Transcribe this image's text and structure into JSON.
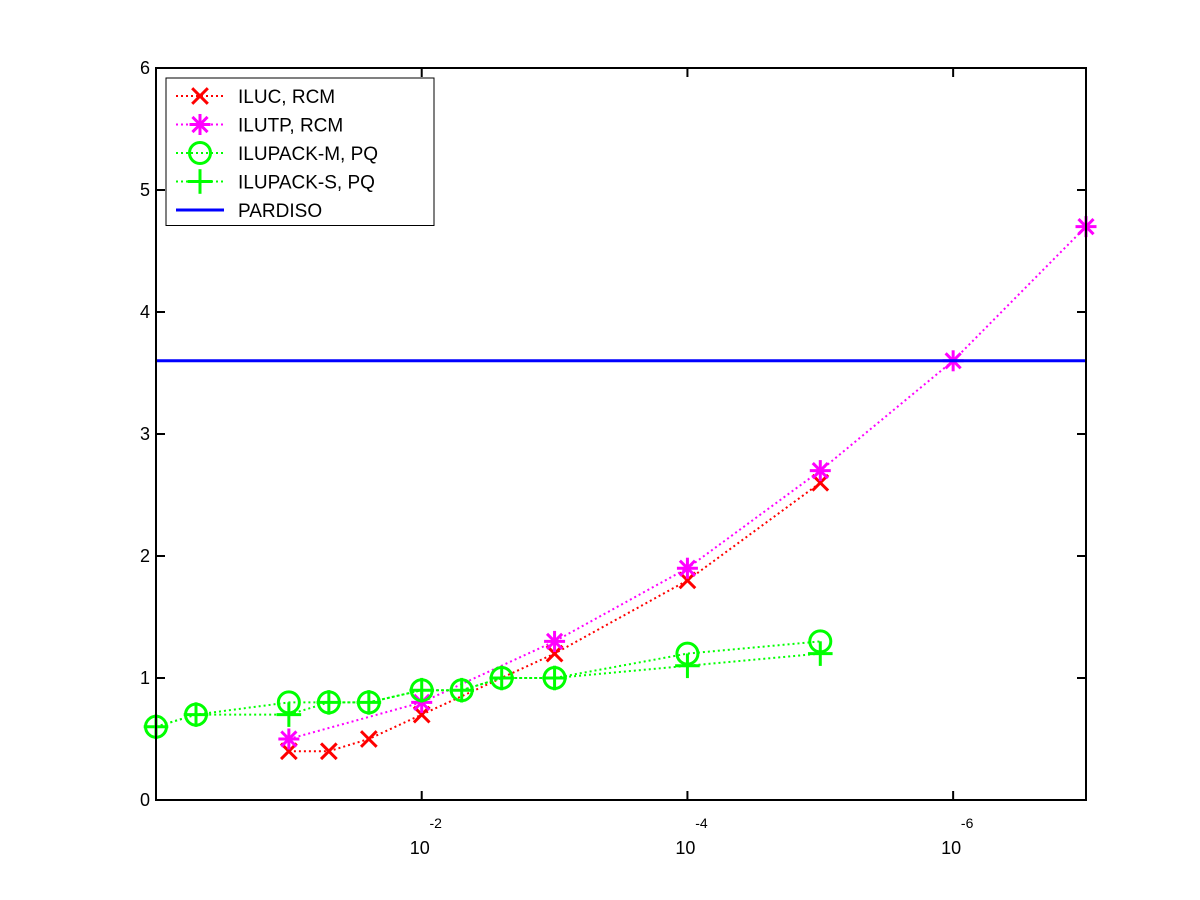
{
  "chart_data": {
    "type": "line",
    "x_scale": "log",
    "x_direction": "decreasing",
    "xlim": [
      1,
      1e-07
    ],
    "ylim": [
      0,
      6
    ],
    "y_ticks": [
      0,
      1,
      2,
      3,
      4,
      5,
      6
    ],
    "x_ticks": [
      {
        "value": 0.01,
        "base": "10",
        "exp": "-2"
      },
      {
        "value": 0.0001,
        "base": "10",
        "exp": "-4"
      },
      {
        "value": 1e-06,
        "base": "10",
        "exp": "-6"
      }
    ],
    "legend_placement": "top-left",
    "grid": false,
    "series": [
      {
        "name": "ILUC, RCM",
        "color": "#ff0000",
        "line": "dotted",
        "marker": "x",
        "points": [
          [
            0.1,
            0.4
          ],
          [
            0.05,
            0.4
          ],
          [
            0.025,
            0.5
          ],
          [
            0.01,
            0.7
          ],
          [
            0.001,
            1.2
          ],
          [
            0.0001,
            1.8
          ],
          [
            1e-05,
            2.6
          ]
        ]
      },
      {
        "name": "ILUTP, RCM",
        "color": "#ff00ff",
        "line": "dotted",
        "marker": "star",
        "points": [
          [
            0.1,
            0.5
          ],
          [
            0.01,
            0.8
          ],
          [
            0.001,
            1.3
          ],
          [
            0.0001,
            1.9
          ],
          [
            1e-05,
            2.7
          ],
          [
            1e-06,
            3.6
          ],
          [
            1e-07,
            4.7
          ]
        ]
      },
      {
        "name": "ILUPACK-M, PQ",
        "color": "#00ff00",
        "line": "dotted",
        "marker": "circle",
        "points": [
          [
            1,
            0.6
          ],
          [
            0.5,
            0.7
          ],
          [
            0.1,
            0.8
          ],
          [
            0.05,
            0.8
          ],
          [
            0.025,
            0.8
          ],
          [
            0.01,
            0.9
          ],
          [
            0.005,
            0.9
          ],
          [
            0.0025,
            1.0
          ],
          [
            0.001,
            1.0
          ],
          [
            0.0001,
            1.2
          ],
          [
            1e-05,
            1.3
          ]
        ]
      },
      {
        "name": "ILUPACK-S, PQ",
        "color": "#00ff00",
        "line": "dotted",
        "marker": "plus",
        "points": [
          [
            1,
            0.6
          ],
          [
            0.5,
            0.7
          ],
          [
            0.1,
            0.7
          ],
          [
            0.05,
            0.8
          ],
          [
            0.025,
            0.8
          ],
          [
            0.01,
            0.9
          ],
          [
            0.005,
            0.9
          ],
          [
            0.0025,
            1.0
          ],
          [
            0.001,
            1.0
          ],
          [
            0.0001,
            1.1
          ],
          [
            1e-05,
            1.2
          ]
        ]
      },
      {
        "name": "PARDISO",
        "color": "#0000ff",
        "line": "solid",
        "marker": "none",
        "points": [
          [
            1,
            3.6
          ],
          [
            1e-07,
            3.6
          ]
        ]
      }
    ]
  }
}
